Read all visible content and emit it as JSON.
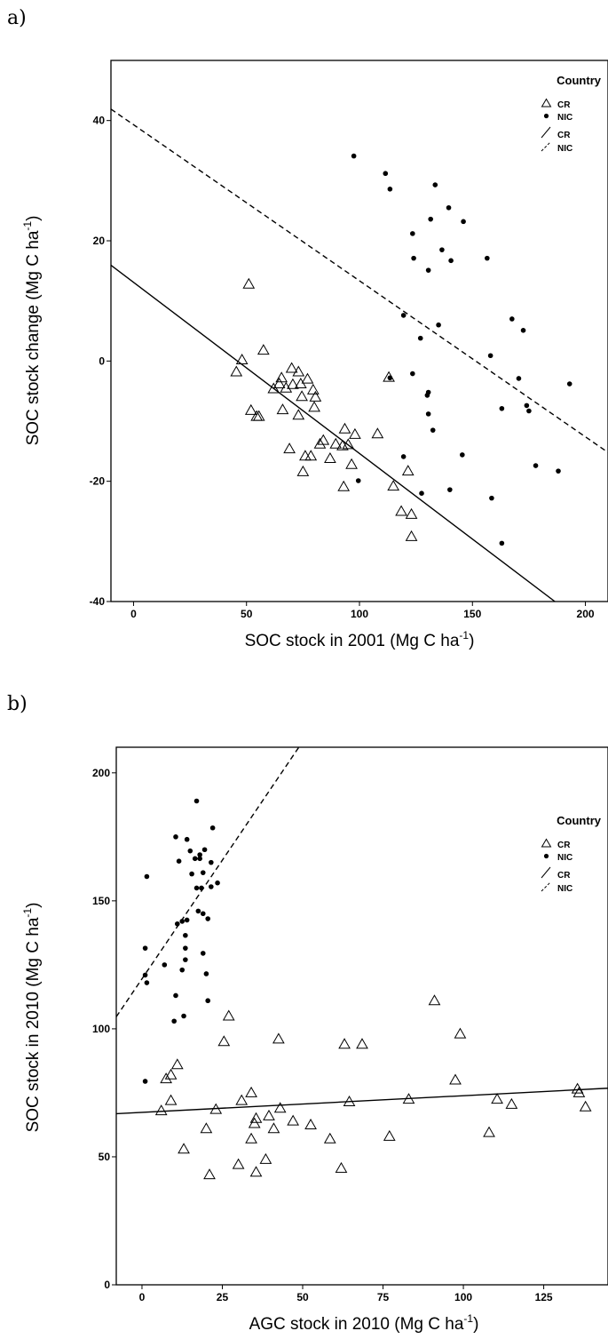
{
  "chart_data": [
    {
      "panel": "a)",
      "type": "scatter",
      "xlabel": "SOC stock in 2001 (Mg C ha",
      "xlabel_sup": "-1",
      "xlabel_tail": ")",
      "ylabel": "SOC stock change (Mg C ha",
      "ylabel_sup": "-1",
      "ylabel_tail": ")",
      "xlim": [
        -10,
        210
      ],
      "ylim": [
        -40,
        50
      ],
      "xticks": [
        0,
        50,
        100,
        150,
        200
      ],
      "xtick_labels": [
        "0",
        "50",
        "100",
        "150",
        "200"
      ],
      "yticks": [
        -40,
        -20,
        0,
        20,
        40
      ],
      "ytick_labels": [
        "-40",
        "-20",
        "0",
        "20",
        "40"
      ],
      "legend": {
        "title": "Country",
        "position": "top-right",
        "entries": [
          "CR",
          "NIC",
          "CR",
          "NIC"
        ]
      },
      "series": [
        {
          "name": "CR",
          "marker": "open-triangle",
          "points": [
            [
              51,
              12.8
            ],
            [
              48,
              0.2
            ],
            [
              45.5,
              -1.8
            ],
            [
              57.5,
              1.8
            ],
            [
              52,
              -8.2
            ],
            [
              54.5,
              -9.2
            ],
            [
              55.5,
              -9.2
            ],
            [
              62,
              -4.6
            ],
            [
              64.5,
              -3.8
            ],
            [
              65.5,
              -2.8
            ],
            [
              66,
              -8.1
            ],
            [
              67.5,
              -4.5
            ],
            [
              70,
              -1.2
            ],
            [
              70.5,
              -3.9
            ],
            [
              73,
              -1.8
            ],
            [
              74,
              -3.8
            ],
            [
              74.5,
              -5.9
            ],
            [
              73,
              -9.0
            ],
            [
              69,
              -14.6
            ],
            [
              77,
              -3.0
            ],
            [
              78.5,
              -15.8
            ],
            [
              79.5,
              -4.8
            ],
            [
              80.5,
              -6.0
            ],
            [
              80,
              -7.7
            ],
            [
              76,
              -15.8
            ],
            [
              75,
              -18.4
            ],
            [
              84,
              -13.2
            ],
            [
              82.5,
              -13.8
            ],
            [
              87,
              -16.2
            ],
            [
              89.5,
              -13.8
            ],
            [
              92.5,
              -14.1
            ],
            [
              93.5,
              -11.3
            ],
            [
              95,
              -13.9
            ],
            [
              96.5,
              -17.2
            ],
            [
              98,
              -12.2
            ],
            [
              93,
              -20.9
            ],
            [
              108,
              -12.1
            ],
            [
              113,
              -2.7
            ],
            [
              115,
              -20.8
            ],
            [
              118.5,
              -25.0
            ],
            [
              121.5,
              -18.3
            ],
            [
              123,
              -25.5
            ],
            [
              123,
              -29.2
            ]
          ]
        },
        {
          "name": "NIC",
          "marker": "filled-dot",
          "points": [
            [
              97.5,
              34.1
            ],
            [
              111.5,
              31.2
            ],
            [
              113.5,
              28.6
            ],
            [
              133.5,
              29.3
            ],
            [
              123.5,
              21.2
            ],
            [
              124,
              17.1
            ],
            [
              130.5,
              15.1
            ],
            [
              131.5,
              23.6
            ],
            [
              136.5,
              18.5
            ],
            [
              139.5,
              25.5
            ],
            [
              140.5,
              16.7
            ],
            [
              146,
              23.2
            ],
            [
              156.5,
              17.1
            ],
            [
              119.5,
              7.6
            ],
            [
              127,
              3.8
            ],
            [
              135,
              6.0
            ],
            [
              158,
              0.9
            ],
            [
              167.5,
              7.0
            ],
            [
              172.5,
              5.1
            ],
            [
              113.5,
              -2.8
            ],
            [
              123.5,
              -2.1
            ],
            [
              130.5,
              -5.2
            ],
            [
              130,
              -5.7
            ],
            [
              130.5,
              -8.8
            ],
            [
              132.5,
              -11.5
            ],
            [
              119.5,
              -15.9
            ],
            [
              99.5,
              -19.9
            ],
            [
              127.5,
              -22.0
            ],
            [
              140,
              -21.4
            ],
            [
              145.5,
              -15.6
            ],
            [
              158.5,
              -22.8
            ],
            [
              163,
              -7.9
            ],
            [
              170.5,
              -2.9
            ],
            [
              174,
              -7.4
            ],
            [
              175,
              -8.3
            ],
            [
              178,
              -17.4
            ],
            [
              188,
              -18.3
            ],
            [
              193,
              -3.8
            ],
            [
              163,
              -30.3
            ]
          ]
        }
      ],
      "fit_lines": [
        {
          "name": "CR",
          "style": "solid",
          "x": [
            -10,
            186.5
          ],
          "y": [
            15.94,
            -40
          ]
        },
        {
          "name": "NIC",
          "style": "dashed",
          "x": [
            -10,
            210
          ],
          "y": [
            41.9,
            -15.2
          ]
        }
      ]
    },
    {
      "panel": "b)",
      "type": "scatter",
      "xlabel": "AGC stock in 2010 (Mg C ha",
      "xlabel_sup": "-1",
      "xlabel_tail": ")",
      "ylabel": "SOC stock in 2010 (Mg C ha",
      "ylabel_sup": "-1",
      "ylabel_tail": ")",
      "xlim": [
        -8,
        145
      ],
      "ylim": [
        0,
        210
      ],
      "xticks": [
        0,
        25,
        50,
        75,
        100,
        125
      ],
      "xtick_labels": [
        "0",
        "25",
        "50",
        "75",
        "100",
        "125"
      ],
      "yticks": [
        0,
        50,
        100,
        150,
        200
      ],
      "ytick_labels": [
        "0",
        "50",
        "100",
        "150",
        "200"
      ],
      "legend": {
        "title": "Country",
        "position": "top-right",
        "entries": [
          "CR",
          "NIC",
          "CR",
          "NIC"
        ]
      },
      "series": [
        {
          "name": "CR",
          "marker": "open-triangle",
          "points": [
            [
              27,
              105
            ],
            [
              25.5,
              95
            ],
            [
              42.5,
              96
            ],
            [
              63,
              94
            ],
            [
              68.5,
              94
            ],
            [
              91,
              111
            ],
            [
              99,
              98
            ],
            [
              97.5,
              80
            ],
            [
              11,
              86
            ],
            [
              9,
              82
            ],
            [
              7.5,
              80.5
            ],
            [
              6,
              68
            ],
            [
              9,
              72
            ],
            [
              20,
              61
            ],
            [
              23,
              68.5
            ],
            [
              13,
              53
            ],
            [
              21,
              43
            ],
            [
              30,
              47
            ],
            [
              31,
              72
            ],
            [
              34,
              75
            ],
            [
              34,
              57
            ],
            [
              35,
              63
            ],
            [
              35.5,
              65
            ],
            [
              35.5,
              44
            ],
            [
              38.5,
              49
            ],
            [
              39.5,
              66
            ],
            [
              41,
              61
            ],
            [
              43,
              69
            ],
            [
              47,
              64
            ],
            [
              52.5,
              62.5
            ],
            [
              58.5,
              57
            ],
            [
              62,
              45.5
            ],
            [
              64.5,
              71.5
            ],
            [
              77,
              58
            ],
            [
              83,
              72.5
            ],
            [
              108,
              59.5
            ],
            [
              110.5,
              72.5
            ],
            [
              115,
              70.5
            ],
            [
              135.5,
              76.5
            ],
            [
              136,
              75
            ],
            [
              138,
              69.5
            ]
          ]
        },
        {
          "name": "NIC",
          "marker": "filled-dot",
          "points": [
            [
              1,
              79.5
            ],
            [
              1,
              121
            ],
            [
              1.5,
              118
            ],
            [
              1,
              131.5
            ],
            [
              1.5,
              159.5
            ],
            [
              7,
              125
            ],
            [
              10,
              103
            ],
            [
              10.5,
              113
            ],
            [
              11,
              141
            ],
            [
              10.5,
              175
            ],
            [
              11.5,
              165.5
            ],
            [
              12.5,
              123
            ],
            [
              12.5,
              142
            ],
            [
              13.5,
              127
            ],
            [
              13.5,
              131.5
            ],
            [
              13.5,
              136.5
            ],
            [
              14,
              142.5
            ],
            [
              13,
              105
            ],
            [
              14,
              174
            ],
            [
              15,
              169.5
            ],
            [
              15.5,
              160.5
            ],
            [
              16.5,
              166.5
            ],
            [
              17,
              155
            ],
            [
              17,
              189
            ],
            [
              17.5,
              146
            ],
            [
              18,
              166.5
            ],
            [
              18,
              168
            ],
            [
              19,
              145
            ],
            [
              19,
              129.5
            ],
            [
              18.5,
              155
            ],
            [
              19,
              161
            ],
            [
              19.5,
              170
            ],
            [
              20,
              121.5
            ],
            [
              20.5,
              143
            ],
            [
              20.5,
              111
            ],
            [
              21.5,
              165
            ],
            [
              21.5,
              155.5
            ],
            [
              22,
              178.5
            ],
            [
              23.5,
              157
            ]
          ]
        }
      ],
      "fit_lines": [
        {
          "name": "CR",
          "style": "solid",
          "x": [
            -8,
            145
          ],
          "y": [
            66.85,
            76.8
          ]
        },
        {
          "name": "NIC",
          "style": "dashed",
          "x": [
            -8,
            48.8
          ],
          "y": [
            104.7,
            210
          ]
        }
      ]
    }
  ]
}
